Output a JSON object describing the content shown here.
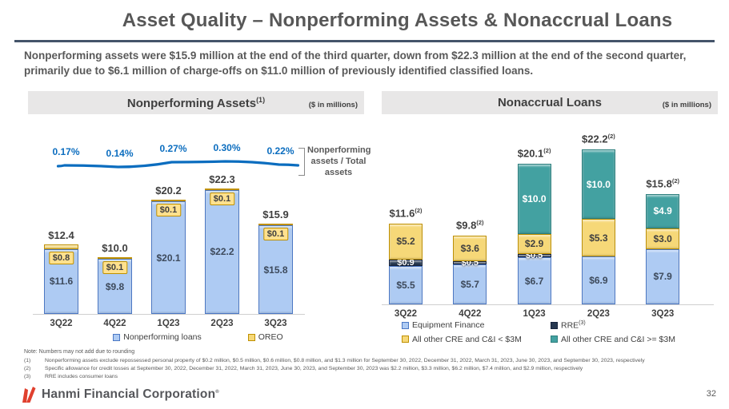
{
  "slide": {
    "title": "Asset Quality – Nonperforming Assets & Nonaccrual Loans",
    "subtitle": "Nonperforming assets were $15.9 million at the end of the third quarter, down from $22.3 million at the end of the second quarter, primarily due to $6.1 million of charge-offs on $11.0 million of previously identified classified loans.",
    "page_number": "32",
    "footer_brand": "Hanmi Financial Corporation",
    "footer_brand_mark": "®",
    "note": "Note: Numbers may not add due to rounding",
    "footnotes": [
      {
        "num": "(1)",
        "text": "Nonperforming assets exclude repossessed personal property of $0.2 million, $0.5 million, $0.6 million, $0.8 million, and $1.3 million for September 30, 2022, December 31, 2022, March 31, 2023, June 30, 2023, and September 30, 2023, respectively"
      },
      {
        "num": "(2)",
        "text": "Specific allowance for credit losses at September 30, 2022, December 31, 2022, March 31, 2023, June 30, 2023, and September 30, 2023 was $2.2 million, $3.3 million, $6.2 million, $7.4 million, and $2.9 million, respectively"
      },
      {
        "num": "(3)",
        "text": "RRE includes consumer loans"
      }
    ]
  },
  "colors": {
    "accent_blue": "#0b6dbf",
    "rule_slate": "#44546a",
    "header_gray": "#e8e7e7",
    "logo_red": "#e0402e"
  },
  "chart_data": [
    {
      "type": "bar",
      "panel_title": "Nonperforming Assets",
      "panel_title_superscript": "(1)",
      "units_label": "($ in millions)",
      "categories": [
        "3Q22",
        "4Q22",
        "1Q23",
        "2Q23",
        "3Q23"
      ],
      "series": [
        {
          "name": "Nonperforming loans",
          "color": "#aecbf3",
          "border": "#4a77c4",
          "text_color": "#3d4a5c",
          "values": [
            11.6,
            9.8,
            20.1,
            22.2,
            15.8
          ],
          "labels": [
            "$11.6",
            "$9.8",
            "$20.1",
            "$22.2",
            "$15.8"
          ]
        },
        {
          "name": "OREO",
          "color": "#f6d878",
          "border": "#bf9000",
          "text_color": "#404040",
          "values": [
            0.8,
            0.1,
            0.1,
            0.1,
            0.1
          ],
          "labels": [
            "$0.8",
            "$0.1",
            "$0.1",
            "$0.1",
            "$0.1"
          ]
        }
      ],
      "totals": [
        "$12.4",
        "$10.0",
        "$20.2",
        "$22.3",
        "$15.9"
      ],
      "ratio_line": {
        "label": "Nonperforming assets / Total assets",
        "values": [
          "0.17%",
          "0.14%",
          "0.27%",
          "0.30%",
          "0.22%"
        ]
      },
      "ylim": [
        0,
        25
      ],
      "legend_position": "bottom"
    },
    {
      "type": "stacked-bar",
      "panel_title": "Nonaccrual Loans",
      "units_label": "($ in millions)",
      "categories": [
        "3Q22",
        "4Q22",
        "1Q23",
        "2Q23",
        "3Q23"
      ],
      "series": [
        {
          "name": "Equipment Finance",
          "color": "#aecbf3",
          "border": "#4a77c4",
          "text_color": "#3d4a5c",
          "values": [
            5.5,
            5.7,
            6.7,
            6.9,
            7.9
          ],
          "labels": [
            "$5.5",
            "$5.7",
            "$6.7",
            "$6.9",
            "$7.9"
          ]
        },
        {
          "name": "RRE",
          "superscript": "(3)",
          "color": "#263850",
          "border": "#16233d",
          "text_color": "#ffffff",
          "values": [
            0.9,
            0.5,
            0.5,
            0,
            0
          ],
          "labels": [
            "$0.9",
            "$0.5",
            "$0.5",
            "",
            ""
          ]
        },
        {
          "name": "All other CRE and C&I < $3M",
          "color": "#f6d878",
          "border": "#bf9000",
          "text_color": "#404040",
          "values": [
            5.2,
            3.6,
            2.9,
            5.3,
            3.0
          ],
          "labels": [
            "$5.2",
            "$3.6",
            "$2.9",
            "$5.3",
            "$3.0"
          ]
        },
        {
          "name": "All other CRE and C&I >= $3M",
          "color": "#43a1a1",
          "border": "#2e7f7e",
          "text_color": "#ffffff",
          "values": [
            0,
            0,
            10.0,
            10.0,
            4.9
          ],
          "labels": [
            "",
            "",
            "$10.0",
            "$10.0",
            "$4.9"
          ]
        }
      ],
      "totals": [
        "$11.6",
        "$9.8",
        "$20.1",
        "$22.2",
        "$15.8"
      ],
      "totals_superscript": "(2)",
      "ylim": [
        0,
        23
      ],
      "legend_position": "bottom"
    }
  ]
}
